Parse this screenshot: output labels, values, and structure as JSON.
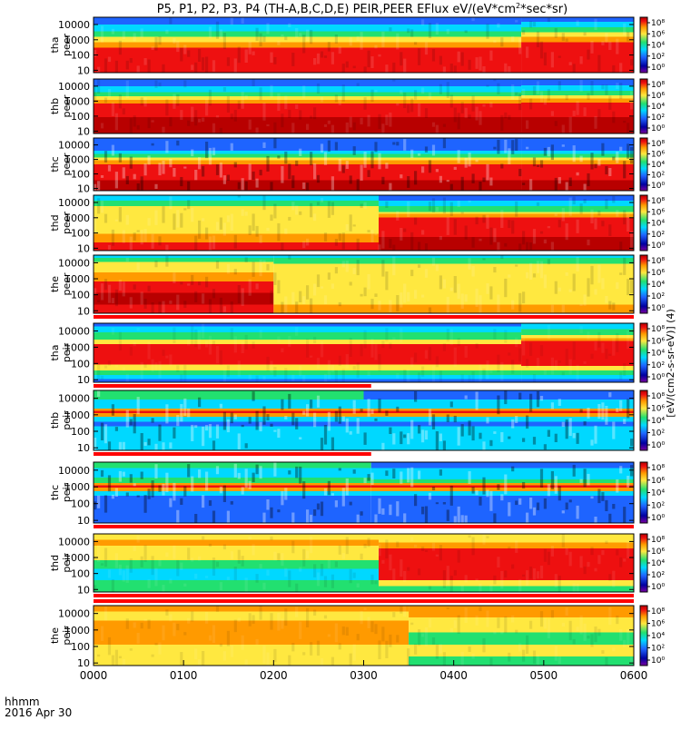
{
  "title": "P5, P1, P2, P3, P4 (TH-A,B,C,D,E) PEIR,PEER EFlux eV/(eV*cm",
  "title_sup": "2",
  "title_tail": "*sec*sr)",
  "time_axis": {
    "ticks": [
      "0000",
      "0100",
      "0200",
      "0300",
      "0400",
      "0500",
      "0600"
    ],
    "format_label": "hhmm",
    "date_label": "2016 Apr 30"
  },
  "colorbar_axis_label": "[eV/(cm2-s-sr-eV)] (4)",
  "colors": {
    "low": "#0000a0",
    "blue": "#1e64ff",
    "cyan": "#00d8ff",
    "green": "#22e070",
    "yellow": "#ffe840",
    "orange": "#ff9a00",
    "red": "#ee1010",
    "darkred": "#b80000",
    "flag_red": "#ff0000"
  },
  "chart_data": [
    {
      "type": "heatmap",
      "probe": "tha",
      "species": "peer",
      "ylabel": [
        "tha",
        "peer"
      ],
      "y_ticks": [
        "10",
        "100",
        "1000",
        "10000"
      ],
      "yscale": "log",
      "ylim": [
        7,
        30000
      ],
      "xlim": [
        "0000",
        "0600"
      ],
      "cbar_ticks": [
        "10⁸",
        "10⁶",
        "10⁴",
        "10²",
        "10⁰"
      ],
      "profile_early": [
        [
          "red",
          0.45
        ],
        [
          "orange",
          0.55
        ],
        [
          "yellow",
          0.65
        ],
        [
          "green",
          0.75
        ],
        [
          "cyan",
          0.87
        ],
        [
          "blue",
          1.0
        ]
      ],
      "profile_late": [
        [
          "red",
          0.55
        ],
        [
          "orange",
          0.65
        ],
        [
          "yellow",
          0.73
        ],
        [
          "green",
          0.82
        ],
        [
          "cyan",
          0.92
        ],
        [
          "blue",
          1.0
        ]
      ],
      "change_time": "0445",
      "noise": 0.12
    },
    {
      "type": "heatmap",
      "probe": "thb",
      "species": "peer",
      "ylabel": [
        "thb",
        "peer"
      ],
      "y_ticks": [
        "10",
        "100",
        "1000",
        "10000"
      ],
      "yscale": "log",
      "ylim": [
        7,
        30000
      ],
      "xlim": [
        "0000",
        "0600"
      ],
      "cbar_ticks": [
        "10⁸",
        "10⁶",
        "10⁴",
        "10²",
        "10⁰"
      ],
      "profile_early": [
        [
          "darkred",
          0.3
        ],
        [
          "red",
          0.55
        ],
        [
          "orange",
          0.62
        ],
        [
          "yellow",
          0.68
        ],
        [
          "green",
          0.76
        ],
        [
          "cyan",
          0.87
        ],
        [
          "blue",
          1.0
        ]
      ],
      "profile_late": [
        [
          "darkred",
          0.3
        ],
        [
          "red",
          0.57
        ],
        [
          "orange",
          0.64
        ],
        [
          "yellow",
          0.7
        ],
        [
          "green",
          0.78
        ],
        [
          "cyan",
          0.88
        ],
        [
          "blue",
          1.0
        ]
      ],
      "change_time": "0445",
      "noise": 0.1
    },
    {
      "type": "heatmap",
      "probe": "thc",
      "species": "peer",
      "ylabel": [
        "thc",
        "peer"
      ],
      "y_ticks": [
        "10",
        "100",
        "1000",
        "10000"
      ],
      "yscale": "log",
      "ylim": [
        7,
        30000
      ],
      "xlim": [
        "0000",
        "0600"
      ],
      "cbar_ticks": [
        "10⁸",
        "10⁶",
        "10⁴",
        "10²",
        "10⁰"
      ],
      "profile_early": [
        [
          "darkred",
          0.2
        ],
        [
          "red",
          0.5
        ],
        [
          "orange",
          0.58
        ],
        [
          "yellow",
          0.63
        ],
        [
          "green",
          0.7
        ],
        [
          "cyan",
          0.76
        ],
        [
          "blue",
          1.0
        ]
      ],
      "profile_late": [
        [
          "darkred",
          0.2
        ],
        [
          "red",
          0.5
        ],
        [
          "orange",
          0.58
        ],
        [
          "yellow",
          0.63
        ],
        [
          "green",
          0.7
        ],
        [
          "cyan",
          0.76
        ],
        [
          "blue",
          1.0
        ]
      ],
      "change_time": "0445",
      "noise": 0.3
    },
    {
      "type": "heatmap",
      "probe": "thd",
      "species": "peer",
      "ylabel": [
        "thd",
        "peer"
      ],
      "y_ticks": [
        "10",
        "100",
        "1000",
        "10000"
      ],
      "yscale": "log",
      "ylim": [
        7,
        30000
      ],
      "xlim": [
        "0000",
        "0600"
      ],
      "cbar_ticks": [
        "10⁸",
        "10⁶",
        "10⁴",
        "10²",
        "10⁰"
      ],
      "profile_early": [
        [
          "red",
          0.15
        ],
        [
          "orange",
          0.3
        ],
        [
          "yellow",
          0.8
        ],
        [
          "green",
          0.9
        ],
        [
          "cyan",
          1.0
        ]
      ],
      "profile_late": [
        [
          "darkred",
          0.25
        ],
        [
          "red",
          0.6
        ],
        [
          "orange",
          0.66
        ],
        [
          "yellow",
          0.7
        ],
        [
          "green",
          0.8
        ],
        [
          "cyan",
          0.9
        ],
        [
          "blue",
          1.0
        ]
      ],
      "change_time": "0310",
      "noise": 0.12
    },
    {
      "type": "heatmap",
      "probe": "the",
      "species": "peer",
      "ylabel": [
        "the",
        "peer"
      ],
      "y_ticks": [
        "10",
        "100",
        "1000",
        "10000"
      ],
      "yscale": "log",
      "ylim": [
        7,
        30000
      ],
      "xlim": [
        "0000",
        "0600"
      ],
      "cbar_ticks": [
        "10⁸",
        "10⁶",
        "10⁴",
        "10²",
        "10⁰"
      ],
      "profile_early": [
        [
          "red",
          0.15
        ],
        [
          "darkred",
          0.35
        ],
        [
          "red",
          0.55
        ],
        [
          "orange",
          0.7
        ],
        [
          "yellow",
          0.88
        ],
        [
          "green",
          0.95
        ],
        [
          "cyan",
          1.0
        ]
      ],
      "profile_late": [
        [
          "orange",
          0.15
        ],
        [
          "yellow",
          0.85
        ],
        [
          "green",
          0.95
        ],
        [
          "cyan",
          1.0
        ]
      ],
      "change_time": "0200",
      "noise": 0.12
    },
    {
      "type": "heatmap",
      "probe": "tha",
      "species": "peir",
      "ylabel": [
        "tha",
        "peir"
      ],
      "y_ticks": [
        "10",
        "100",
        "1000",
        "10000"
      ],
      "yscale": "log",
      "ylim": [
        7,
        30000
      ],
      "xlim": [
        "0000",
        "0600"
      ],
      "cbar_ticks": [
        "10⁸",
        "10⁶",
        "10⁴",
        "10²",
        "10⁰"
      ],
      "profile_early": [
        [
          "blue",
          0.05
        ],
        [
          "cyan",
          0.12
        ],
        [
          "green",
          0.2
        ],
        [
          "yellow",
          0.3
        ],
        [
          "red",
          0.65
        ],
        [
          "yellow",
          0.72
        ],
        [
          "green",
          0.85
        ],
        [
          "cyan",
          0.95
        ],
        [
          "blue",
          1.0
        ]
      ],
      "profile_late": [
        [
          "blue",
          0.05
        ],
        [
          "cyan",
          0.12
        ],
        [
          "green",
          0.2
        ],
        [
          "yellow",
          0.28
        ],
        [
          "red",
          0.7
        ],
        [
          "orange",
          0.75
        ],
        [
          "yellow",
          0.8
        ],
        [
          "green",
          0.9
        ],
        [
          "cyan",
          1.0
        ]
      ],
      "change_time": "0445",
      "noise": 0.06
    },
    {
      "type": "heatmap",
      "probe": "thb",
      "species": "peir",
      "ylabel": [
        "thb",
        "peir"
      ],
      "y_ticks": [
        "10",
        "100",
        "1000",
        "10000"
      ],
      "yscale": "log",
      "ylim": [
        7,
        30000
      ],
      "xlim": [
        "0000",
        "0600"
      ],
      "cbar_ticks": [
        "10⁸",
        "10⁶",
        "10⁴",
        "10²",
        "10⁰"
      ],
      "profile_early": [
        [
          "cyan",
          0.4
        ],
        [
          "blue",
          0.48
        ],
        [
          "cyan",
          0.56
        ],
        [
          "orange",
          0.62
        ],
        [
          "red",
          0.66
        ],
        [
          "orange",
          0.7
        ],
        [
          "cyan",
          0.85
        ],
        [
          "green",
          1.0
        ]
      ],
      "profile_late": [
        [
          "cyan",
          0.4
        ],
        [
          "blue",
          0.48
        ],
        [
          "cyan",
          0.56
        ],
        [
          "orange",
          0.62
        ],
        [
          "red",
          0.66
        ],
        [
          "orange",
          0.7
        ],
        [
          "cyan",
          0.85
        ],
        [
          "blue",
          1.0
        ]
      ],
      "change_time": "0300",
      "noise": 0.35
    },
    {
      "type": "heatmap",
      "probe": "thc",
      "species": "peir",
      "ylabel": [
        "thc",
        "peir"
      ],
      "y_ticks": [
        "10",
        "100",
        "1000",
        "10000"
      ],
      "yscale": "log",
      "ylim": [
        7,
        30000
      ],
      "xlim": [
        "0000",
        "0600"
      ],
      "cbar_ticks": [
        "10⁸",
        "10⁶",
        "10⁴",
        "10²",
        "10⁰"
      ],
      "profile_early": [
        [
          "blue",
          0.45
        ],
        [
          "cyan",
          0.52
        ],
        [
          "orange",
          0.58
        ],
        [
          "red",
          0.62
        ],
        [
          "orange",
          0.66
        ],
        [
          "green",
          0.75
        ],
        [
          "cyan",
          0.9
        ],
        [
          "green",
          1.0
        ]
      ],
      "profile_late": [
        [
          "blue",
          0.45
        ],
        [
          "cyan",
          0.52
        ],
        [
          "orange",
          0.58
        ],
        [
          "red",
          0.62
        ],
        [
          "orange",
          0.66
        ],
        [
          "green",
          0.72
        ],
        [
          "cyan",
          0.9
        ],
        [
          "blue",
          1.0
        ]
      ],
      "change_time": "0305",
      "noise": 0.35
    },
    {
      "type": "heatmap",
      "probe": "thd",
      "species": "peir",
      "ylabel": [
        "thd",
        "peir"
      ],
      "y_ticks": [
        "10",
        "100",
        "1000",
        "10000"
      ],
      "yscale": "log",
      "ylim": [
        7,
        30000
      ],
      "xlim": [
        "0000",
        "0600"
      ],
      "cbar_ticks": [
        "10⁸",
        "10⁶",
        "10⁴",
        "10²",
        "10⁰"
      ],
      "profile_early": [
        [
          "green",
          0.2
        ],
        [
          "cyan",
          0.4
        ],
        [
          "green",
          0.55
        ],
        [
          "yellow",
          0.8
        ],
        [
          "orange",
          0.9
        ],
        [
          "yellow",
          1.0
        ]
      ],
      "profile_late": [
        [
          "green",
          0.1
        ],
        [
          "yellow",
          0.2
        ],
        [
          "red",
          0.75
        ],
        [
          "orange",
          0.85
        ],
        [
          "yellow",
          1.0
        ]
      ],
      "change_time": "0310",
      "noise": 0.08
    },
    {
      "type": "heatmap",
      "probe": "the",
      "species": "peir",
      "ylabel": [
        "the",
        "peir"
      ],
      "y_ticks": [
        "10",
        "100",
        "1000",
        "10000"
      ],
      "yscale": "log",
      "ylim": [
        7,
        30000
      ],
      "xlim": [
        "0000",
        "0600"
      ],
      "cbar_ticks": [
        "10⁸",
        "10⁶",
        "10⁴",
        "10²",
        "10⁰"
      ],
      "profile_early": [
        [
          "yellow",
          0.35
        ],
        [
          "orange",
          0.75
        ],
        [
          "yellow",
          0.9
        ],
        [
          "orange",
          1.0
        ]
      ],
      "profile_late": [
        [
          "green",
          0.15
        ],
        [
          "yellow",
          0.35
        ],
        [
          "green",
          0.55
        ],
        [
          "yellow",
          0.8
        ],
        [
          "orange",
          1.0
        ]
      ],
      "change_time": "0330",
      "noise": 0.08
    }
  ],
  "flag_bars": [
    {
      "after_panel": 4,
      "rows": [
        {
          "xlim_end": "0600"
        }
      ]
    },
    {
      "after_panel": 5,
      "rows": [
        {
          "xlim_end": "0305"
        }
      ]
    },
    {
      "after_panel": 6,
      "rows": [
        {
          "xlim_end": "0305"
        }
      ]
    },
    {
      "after_panel": 7,
      "rows": [
        {
          "xlim_end": "0600"
        }
      ]
    },
    {
      "after_panel": 8,
      "rows": [
        {
          "xlim_end": "0600"
        },
        {
          "xlim_end": "0600"
        }
      ]
    }
  ]
}
